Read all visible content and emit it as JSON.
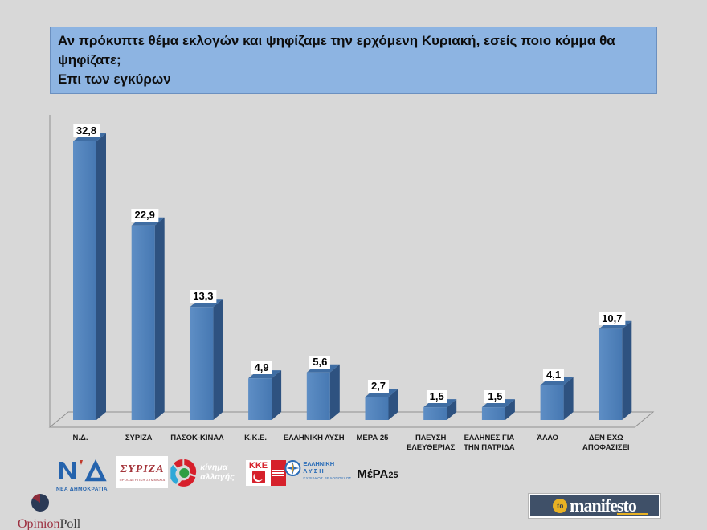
{
  "title": {
    "line1": "Αν πρόκυπτε θέμα εκλογών και ψηφίζαμε την ερχόμενη Κυριακή, εσείς ποιο κόμμα θα ψηφίζατε;",
    "line2": "Επι των εγκύρων"
  },
  "chart_data": {
    "type": "bar",
    "style": "3d",
    "categories": [
      "Ν.Δ.",
      "ΣΥΡΙΖΑ",
      "ΠΑΣΟΚ-ΚΙΝΑΛ",
      "Κ.Κ.Ε.",
      "ΕΛΛΗΝΙΚΗ ΛΥΣΗ",
      "ΜΕΡΑ 25",
      "ΠΛΕΥΣΗ ΕΛΕΥΘΕΡΙΑΣ",
      "ΕΛΛΗΝΕΣ ΓΙΑ ΤΗΝ ΠΑΤΡΙΔΑ",
      "ΆΛΛΟ",
      "ΔΕΝ ΕΧΩ ΑΠΟΦΑΣΙΣΕΙ"
    ],
    "values": [
      32.8,
      22.9,
      13.3,
      4.9,
      5.6,
      2.7,
      1.5,
      1.5,
      4.1,
      10.7
    ],
    "value_labels": [
      "32,8",
      "22,9",
      "13,3",
      "4,9",
      "5,6",
      "2,7",
      "1,5",
      "1,5",
      "4,1",
      "10,7"
    ],
    "title": "",
    "xlabel": "",
    "ylabel": "",
    "ylim": [
      0,
      35
    ],
    "grid": false,
    "legend": "none",
    "colors": {
      "bar_front_light": "#5e8ec5",
      "bar_front_dark": "#4678b2",
      "bar_side": "#2e5280",
      "bar_top": "#3f6da3",
      "axis_line": "#8f8f8f",
      "value_label_bg": "#ffffff",
      "value_label_text": "#000000"
    }
  },
  "header": {
    "bg_color": "#8db4e2"
  },
  "logos": {
    "nd": {
      "caption": "ΝΕΑ ΔΗΜΟΚΡΑΤΙΑ",
      "color": "#2563ad"
    },
    "syriza": {
      "name": "ΣΥΡΙΖΑ",
      "sub": "ΠΡΟΟΔΕΥΤΙΚΗ ΣΥΜΜΑΧΙΑ",
      "color": "#a4343a"
    },
    "kinima": {
      "line1": "κίνημα",
      "line2": "αλλαγής",
      "color": "#d71f2b"
    },
    "kke": {
      "name": "ΚΚΕ",
      "color": "#d6212b"
    },
    "ellysi": {
      "line1": "ΕΛΛΗΝΙΚΗ",
      "line2": "ΛΥΣΗ",
      "sub": "ΚΥΡΙΑΚΟΣ ΒΕΛΟΠΟΥΛΟΣ",
      "color": "#2a6db8"
    },
    "mera": {
      "name": "ΜέΡΑ",
      "num": "25",
      "accent": "#e63329"
    }
  },
  "branding": {
    "opinionpoll": {
      "part1": "Opinion",
      "part2": "Poll",
      "red": "#9c2f3f",
      "navy": "#2b3a56"
    },
    "manifesto": {
      "to": "to",
      "name": "manifesto",
      "bg": "#3f5068",
      "yellow": "#e8b123"
    }
  }
}
